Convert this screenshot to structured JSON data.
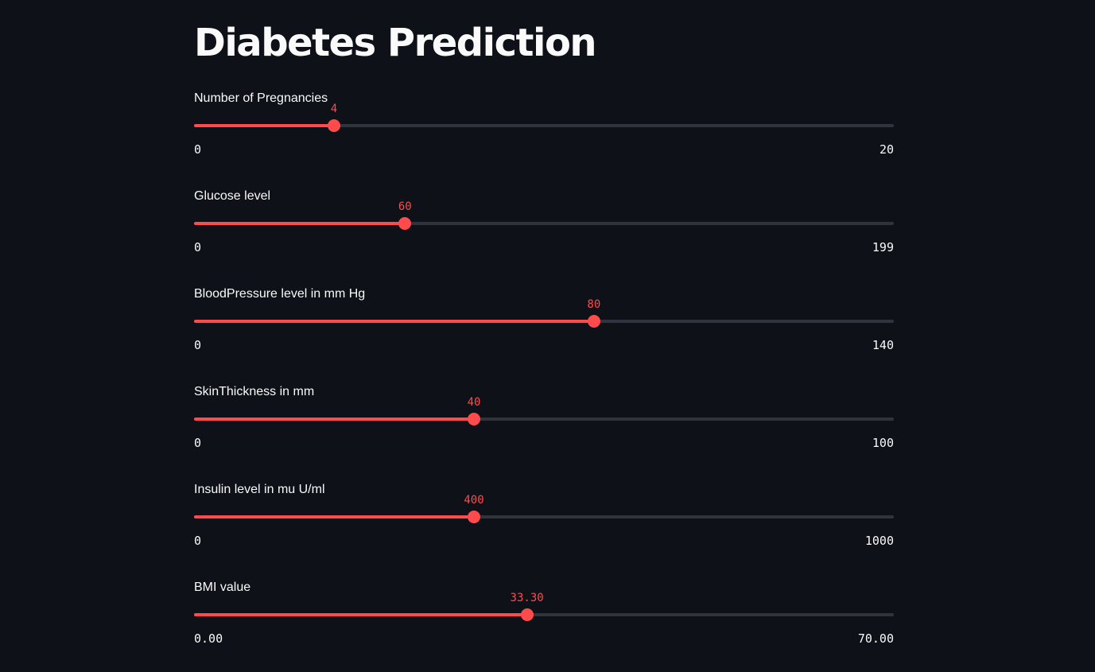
{
  "app": {
    "title": "Diabetes Prediction"
  },
  "colors": {
    "background": "#0e1117",
    "accent": "#ff4b4b",
    "track": "#31333f",
    "text": "#fafafa"
  },
  "sliders": [
    {
      "label": "Number of Pregnancies",
      "value": 4,
      "min": 0,
      "max": 20,
      "value_label": "4",
      "min_label": "0",
      "max_label": "20"
    },
    {
      "label": "Glucose level",
      "value": 60,
      "min": 0,
      "max": 199,
      "value_label": "60",
      "min_label": "0",
      "max_label": "199"
    },
    {
      "label": "BloodPressure level in mm Hg",
      "value": 80,
      "min": 0,
      "max": 140,
      "value_label": "80",
      "min_label": "0",
      "max_label": "140"
    },
    {
      "label": "SkinThickness in mm",
      "value": 40,
      "min": 0,
      "max": 100,
      "value_label": "40",
      "min_label": "0",
      "max_label": "100"
    },
    {
      "label": "Insulin level in mu U/ml",
      "value": 400,
      "min": 0,
      "max": 1000,
      "value_label": "400",
      "min_label": "0",
      "max_label": "1000"
    },
    {
      "label": "BMI value",
      "value": 33.3,
      "min": 0,
      "max": 70,
      "value_label": "33.30",
      "min_label": "0.00",
      "max_label": "70.00"
    }
  ]
}
